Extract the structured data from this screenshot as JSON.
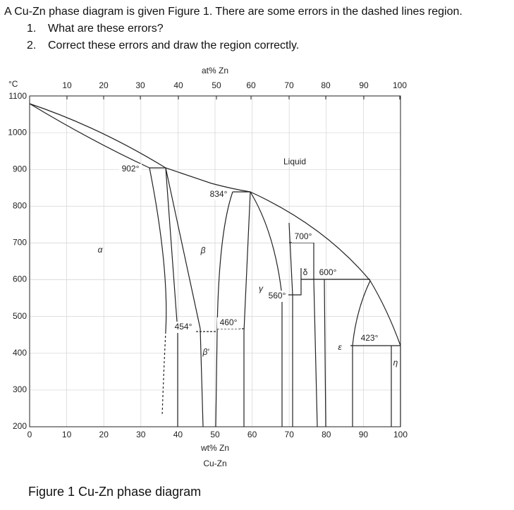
{
  "question": {
    "text": "A Cu-Zn phase diagram is given Figure 1. There are some errors in the dashed lines region.",
    "items": [
      {
        "number": "1.",
        "text": "What are these errors?"
      },
      {
        "number": "2.",
        "text": "Correct these errors and draw the region correctly."
      }
    ]
  },
  "figure": {
    "top_axis_label": "at% Zn",
    "top_ticks": [
      "10",
      "20",
      "30",
      "40",
      "50",
      "60",
      "70",
      "80",
      "90",
      "100"
    ],
    "y_unit": "°C",
    "y_ticks": [
      "1100",
      "1000",
      "900",
      "800",
      "700",
      "600",
      "500",
      "400",
      "300",
      "200"
    ],
    "bottom_ticks": [
      "0",
      "10",
      "20",
      "30",
      "40",
      "50",
      "60",
      "70",
      "80",
      "90",
      "100"
    ],
    "x_label": "wt% Zn",
    "alloy": "Cu-Zn",
    "labels": {
      "t902": "902°",
      "t834": "834°",
      "liquid": "Liquid",
      "t700": "700°",
      "delta": "δ",
      "t600": "600°",
      "gamma": "γ",
      "t560": "560°",
      "t460": "460°",
      "t454": "454°",
      "t423": "423°",
      "alpha": "α",
      "beta": "β",
      "beta_prime": "β′",
      "epsilon": "ε",
      "eta": "η"
    },
    "caption": "Figure 1 Cu-Zn phase diagram"
  }
}
